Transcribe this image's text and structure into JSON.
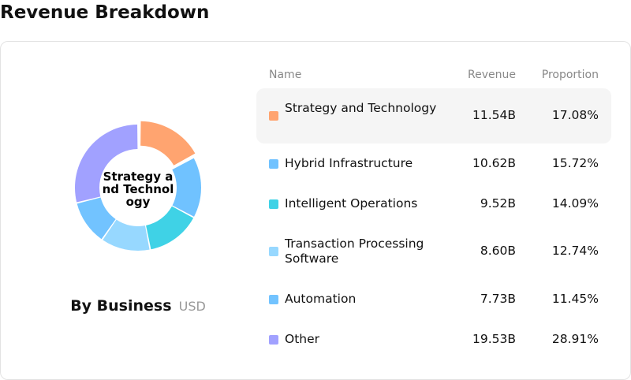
{
  "page_title": "Revenue Breakdown",
  "chart_title": "By Business",
  "chart_unit": "USD",
  "donut_center_label": "Strategy and Technology",
  "table": {
    "headers": {
      "name": "Name",
      "revenue": "Revenue",
      "proportion": "Proportion"
    },
    "active_row": 0
  },
  "chart_data": {
    "type": "pie",
    "donut": true,
    "categories": [
      "Strategy and Technology",
      "Hybrid Infrastructure",
      "Intelligent Operations",
      "Transaction Processing Software",
      "Automation",
      "Other"
    ],
    "revenue": [
      "11.54B",
      "10.62B",
      "9.52B",
      "8.60B",
      "7.73B",
      "19.53B"
    ],
    "proportion": [
      "17.08%",
      "15.72%",
      "14.09%",
      "12.74%",
      "11.45%",
      "28.91%"
    ],
    "values": [
      17.08,
      15.72,
      14.09,
      12.74,
      11.45,
      28.91
    ],
    "colors": [
      "#ffa470",
      "#70c2ff",
      "#3fd2e6",
      "#97d8ff",
      "#72c3ff",
      "#a1a1ff"
    ]
  }
}
